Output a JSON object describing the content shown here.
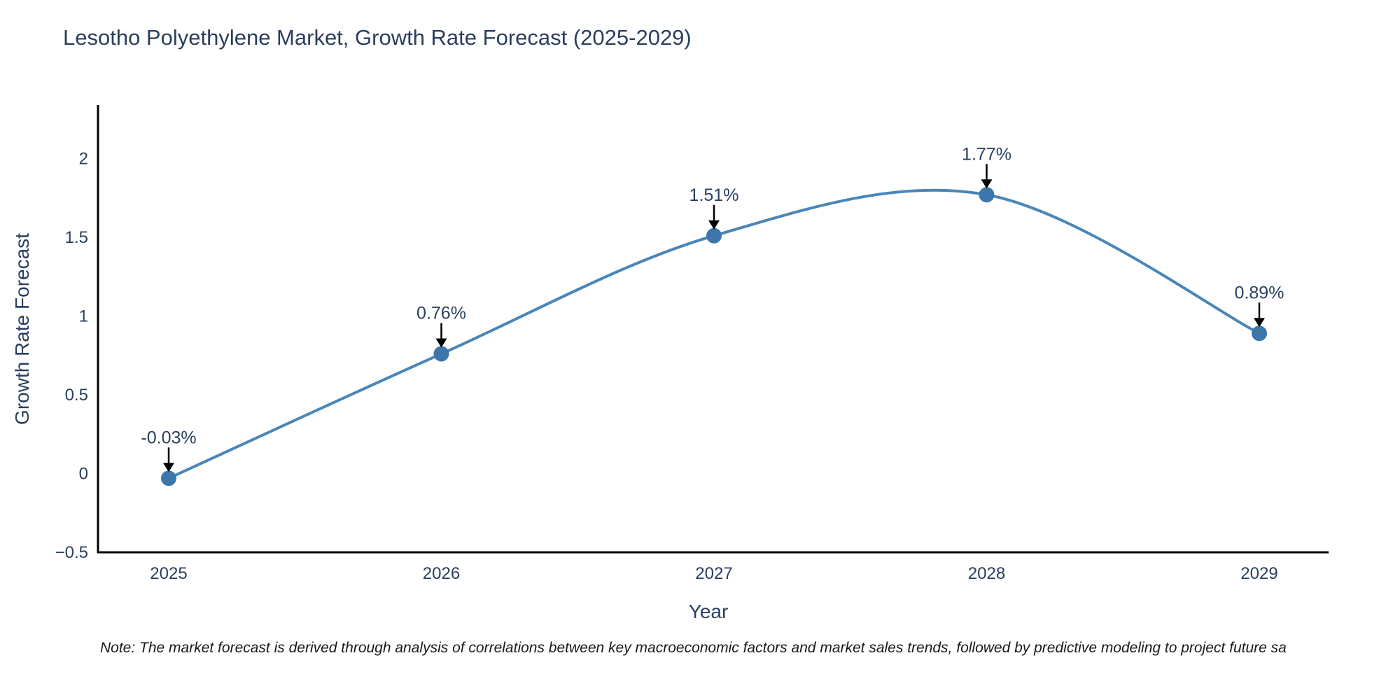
{
  "title": "Lesotho Polyethylene Market, Growth Rate Forecast (2025-2029)",
  "note": "Note: The market forecast is derived through analysis of correlations between key macroeconomic factors and market sales trends, followed by predictive modeling to project future sa",
  "chart_data": {
    "type": "line",
    "line_shape": "spline",
    "x": [
      "2025",
      "2026",
      "2027",
      "2028",
      "2029"
    ],
    "values": [
      -0.03,
      0.76,
      1.51,
      1.77,
      0.89
    ],
    "annotations": [
      "-0.03%",
      "0.76%",
      "1.51%",
      "1.77%",
      "0.89%"
    ],
    "xlabel": "Year",
    "ylabel": "Growth Rate Forecast",
    "ylim": [
      -0.5,
      2.35
    ],
    "yticks": [
      2,
      1.5,
      1,
      0.5,
      0,
      -0.5
    ],
    "ytick_labels": [
      "2",
      "1.5",
      "1",
      "0.5",
      "0",
      "−0.5"
    ],
    "grid": false,
    "legend": "none",
    "colors": {
      "line": "#4a86b8",
      "marker": "#3d76ab",
      "axis": "#000000",
      "text": "#2a3f5f",
      "arrow": "#000000"
    }
  }
}
